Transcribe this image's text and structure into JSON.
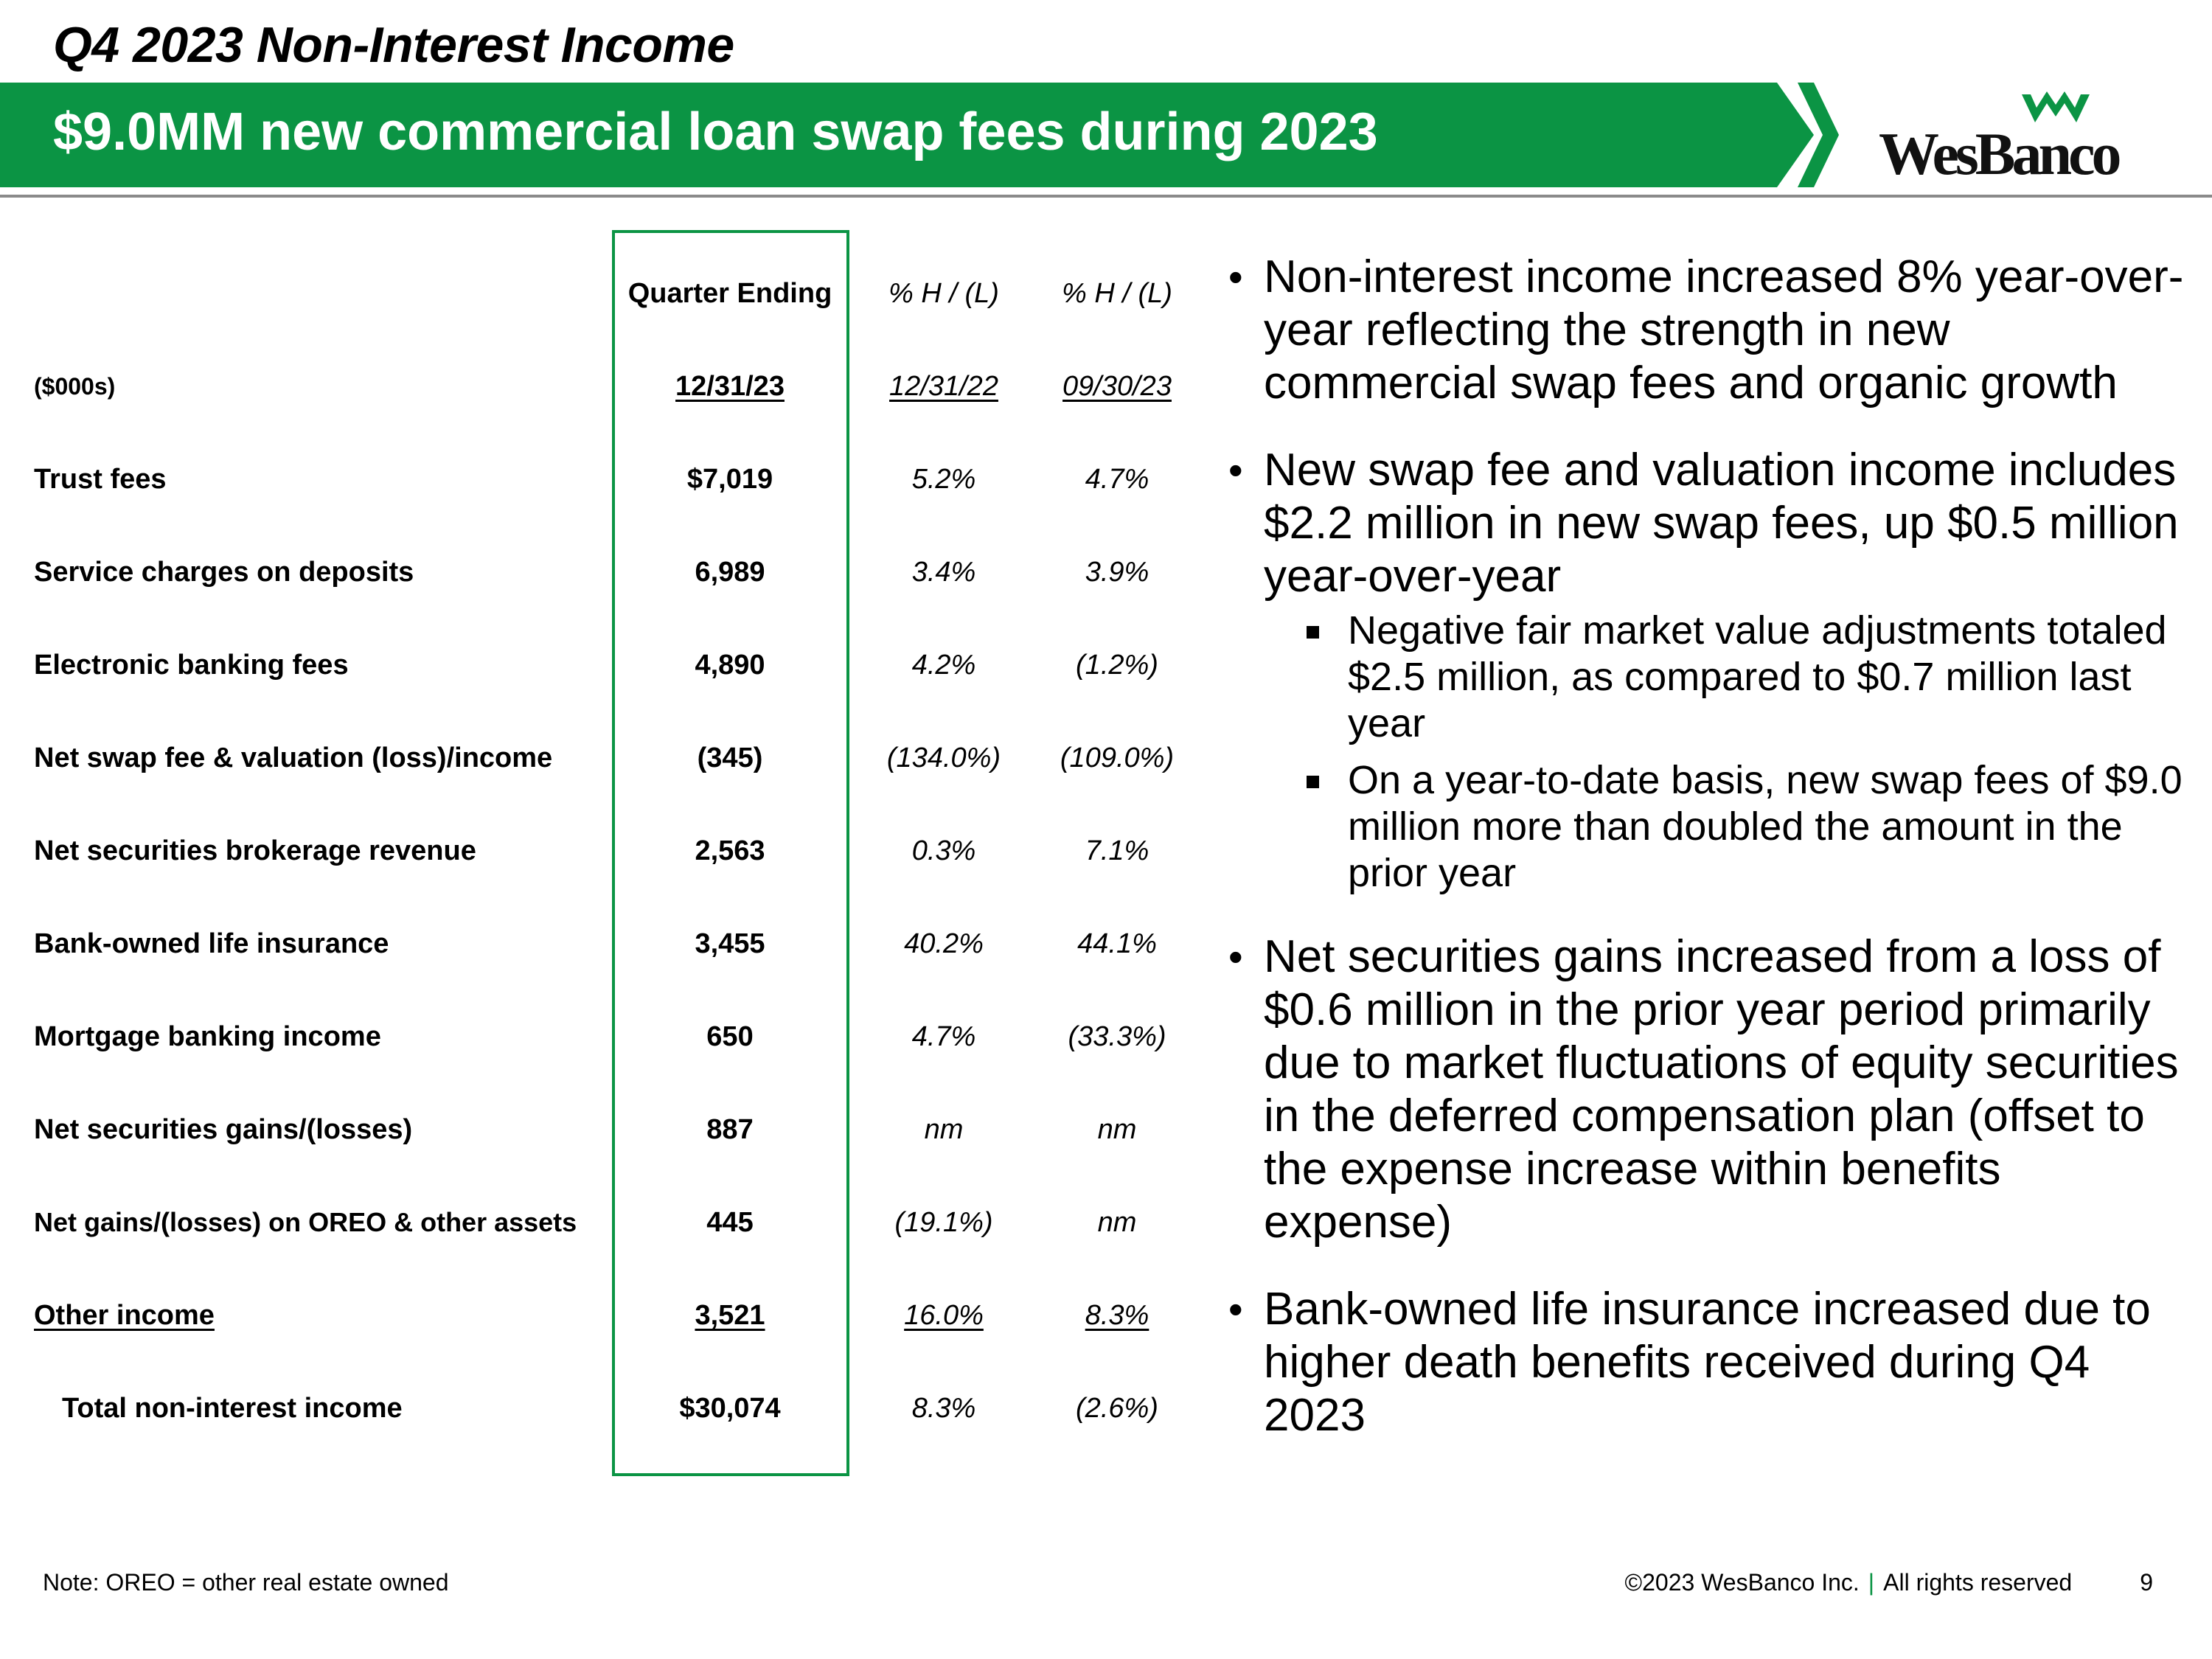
{
  "header": {
    "title": "Q4 2023 Non-Interest Income",
    "banner": "$9.0MM new commercial loan swap fees during 2023",
    "logo_text": "WesBanco",
    "brand_color": "#0b9444"
  },
  "table": {
    "header_row1": {
      "q4": "Quarter Ending",
      "p1": "% H / (L)",
      "p2": "% H / (L)"
    },
    "header_row2": {
      "units": "($000s)",
      "q4": "12/31/23",
      "p1": "12/31/22",
      "p2": "09/30/23"
    },
    "rows": [
      {
        "label": "Trust fees",
        "q4": "$7,019",
        "p1": "5.2%",
        "p2": "4.7%"
      },
      {
        "label": "Service charges on deposits",
        "q4": "6,989",
        "p1": "3.4%",
        "p2": "3.9%"
      },
      {
        "label": "Electronic banking fees",
        "q4": "4,890",
        "p1": "4.2%",
        "p2": "(1.2%)"
      },
      {
        "label": "Net swap fee & valuation (loss)/income",
        "q4": "(345)",
        "p1": "(134.0%)",
        "p2": "(109.0%)"
      },
      {
        "label": "Net securities brokerage revenue",
        "q4": "2,563",
        "p1": "0.3%",
        "p2": "7.1%"
      },
      {
        "label": "Bank-owned life insurance",
        "q4": "3,455",
        "p1": "40.2%",
        "p2": "44.1%"
      },
      {
        "label": "Mortgage banking income",
        "q4": "650",
        "p1": "4.7%",
        "p2": "(33.3%)"
      },
      {
        "label": "Net securities gains/(losses)",
        "q4": "887",
        "p1": "nm",
        "p2": "nm"
      },
      {
        "label": "Net gains/(losses) on OREO & other assets",
        "q4": "445",
        "p1": "(19.1%)",
        "p2": "nm"
      },
      {
        "label": "Other income",
        "q4": "3,521",
        "p1": "16.0%",
        "p2": "8.3%"
      }
    ],
    "total": {
      "label": "Total non-interest income",
      "q4": "$30,074",
      "p1": "8.3%",
      "p2": "(2.6%)"
    }
  },
  "bullets": {
    "b1": "Non-interest income increased 8% year-over-year reflecting the strength in new commercial swap fees and organic growth",
    "b2": "New swap fee and valuation income includes $2.2 million in new swap fees, up $0.5 million year-over-year",
    "b2_sub1": "Negative fair market value adjustments totaled $2.5 million, as compared to $0.7 million last year",
    "b2_sub2": "On a year-to-date basis, new swap fees of $9.0 million more than doubled the amount in the prior year",
    "b3": "Net securities gains increased from a loss of $0.6 million in the prior year period primarily due to market fluctuations of equity securities in the deferred compensation plan (offset to the expense increase within benefits expense)",
    "b4": "Bank-owned life insurance increased due to higher death benefits received during Q4 2023"
  },
  "footer": {
    "note": "Note: OREO = other real estate owned",
    "copyright": "©2023 WesBanco Inc.",
    "separator": "|",
    "rights": "All rights reserved",
    "page": "9"
  }
}
